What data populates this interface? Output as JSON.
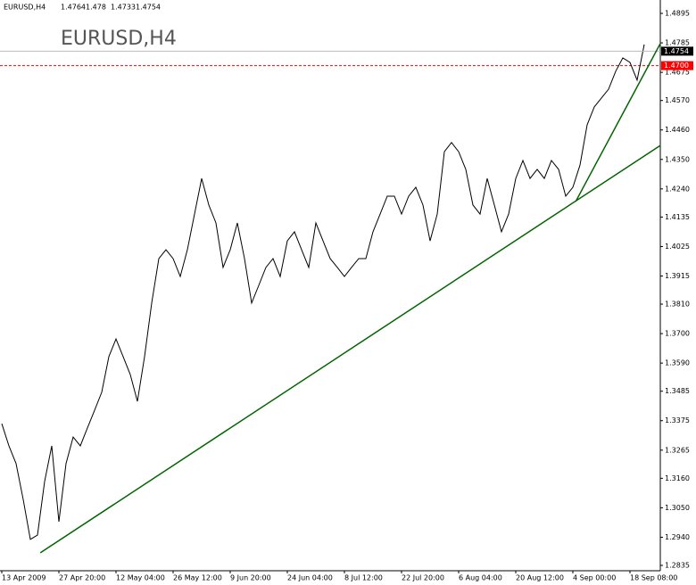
{
  "chart_data": {
    "type": "line",
    "symbol": "EURUSD,H4",
    "ohlc": [
      1.4764,
      1.478,
      1.4733,
      1.4754
    ],
    "watermark": "EURUSD,H4",
    "categories": [
      "13 Apr 2009",
      null,
      null,
      null,
      null,
      null,
      null,
      null,
      "27 Apr 20:00",
      null,
      null,
      null,
      null,
      null,
      null,
      null,
      "12 May 04:00",
      null,
      null,
      null,
      null,
      null,
      null,
      null,
      "26 May 12:00",
      null,
      null,
      null,
      null,
      null,
      null,
      null,
      "9 Jun 20:00",
      null,
      null,
      null,
      null,
      null,
      null,
      null,
      "24 Jun 04:00",
      null,
      null,
      null,
      null,
      null,
      null,
      null,
      "8 Jul 12:00",
      null,
      null,
      null,
      null,
      null,
      null,
      null,
      "22 Jul 20:00",
      null,
      null,
      null,
      null,
      null,
      null,
      null,
      "6 Aug 04:00",
      null,
      null,
      null,
      null,
      null,
      null,
      null,
      "20 Aug 12:00",
      null,
      null,
      null,
      null,
      null,
      null,
      null,
      "4 Sep 00:00",
      null,
      null,
      null,
      null,
      null,
      null,
      null,
      "18 Sep 08:00",
      null,
      null
    ],
    "series": [
      {
        "color": "#000000",
        "values": [
          1.3364,
          1.3281,
          1.3215,
          1.3081,
          1.2932,
          1.2948,
          1.3148,
          1.3281,
          1.2998,
          1.3215,
          1.3314,
          1.3281,
          1.3348,
          1.3414,
          1.3481,
          1.3614,
          1.368,
          1.3614,
          1.3547,
          1.3447,
          1.3614,
          1.3814,
          1.398,
          1.4013,
          1.398,
          1.3913,
          1.4013,
          1.4146,
          1.4279,
          1.418,
          1.4113,
          1.3947,
          1.4013,
          1.4113,
          1.398,
          1.3814,
          1.388,
          1.3947,
          1.398,
          1.3913,
          1.4046,
          1.408,
          1.4013,
          1.3947,
          1.4113,
          1.4046,
          1.398,
          1.3947,
          1.3913,
          1.3947,
          1.398,
          1.398,
          1.408,
          1.4146,
          1.4213,
          1.4213,
          1.4146,
          1.4213,
          1.4246,
          1.418,
          1.4046,
          1.4146,
          1.4379,
          1.4413,
          1.4379,
          1.4313,
          1.418,
          1.4146,
          1.4279,
          1.418,
          1.408,
          1.4146,
          1.4279,
          1.4346,
          1.4279,
          1.4313,
          1.4279,
          1.4346,
          1.4313,
          1.4213,
          1.4246,
          1.4329,
          1.4479,
          1.4546,
          1.4579,
          1.4612,
          1.4679,
          1.4729,
          1.4712,
          1.4646,
          1.4779
        ]
      }
    ],
    "ylim": [
      1.2815,
      1.4945
    ],
    "yticks": [
      1.4895,
      1.4785,
      1.4675,
      {
        "value": 1.457,
        "label": "1.4570"
      },
      {
        "value": 1.446,
        "label": "1.4460"
      },
      {
        "value": 1.435,
        "label": "1.4350"
      },
      {
        "value": 1.424,
        "label": "1.4240"
      },
      1.4135,
      1.4025,
      1.3915,
      {
        "value": 1.381,
        "label": "1.3810"
      },
      {
        "value": 1.37,
        "label": "1.3700"
      },
      {
        "value": 1.359,
        "label": "1.3590"
      },
      1.3485,
      1.3375,
      1.3265,
      {
        "value": 1.316,
        "label": "1.3160"
      },
      {
        "value": 1.305,
        "label": "1.3050"
      },
      {
        "value": 1.294,
        "label": "1.2940"
      },
      1.2835
    ],
    "level": {
      "value": 1.47,
      "label": "1.4700",
      "color": "#ff0000"
    },
    "trendlines": [
      {
        "color": "#006400",
        "x": [
          5.4,
          92.3
        ],
        "y": [
          1.2882,
          1.4403
        ]
      },
      {
        "color": "#006400",
        "x": [
          80.4,
          92.3
        ],
        "y": [
          1.4193,
          1.4785
        ]
      }
    ]
  }
}
